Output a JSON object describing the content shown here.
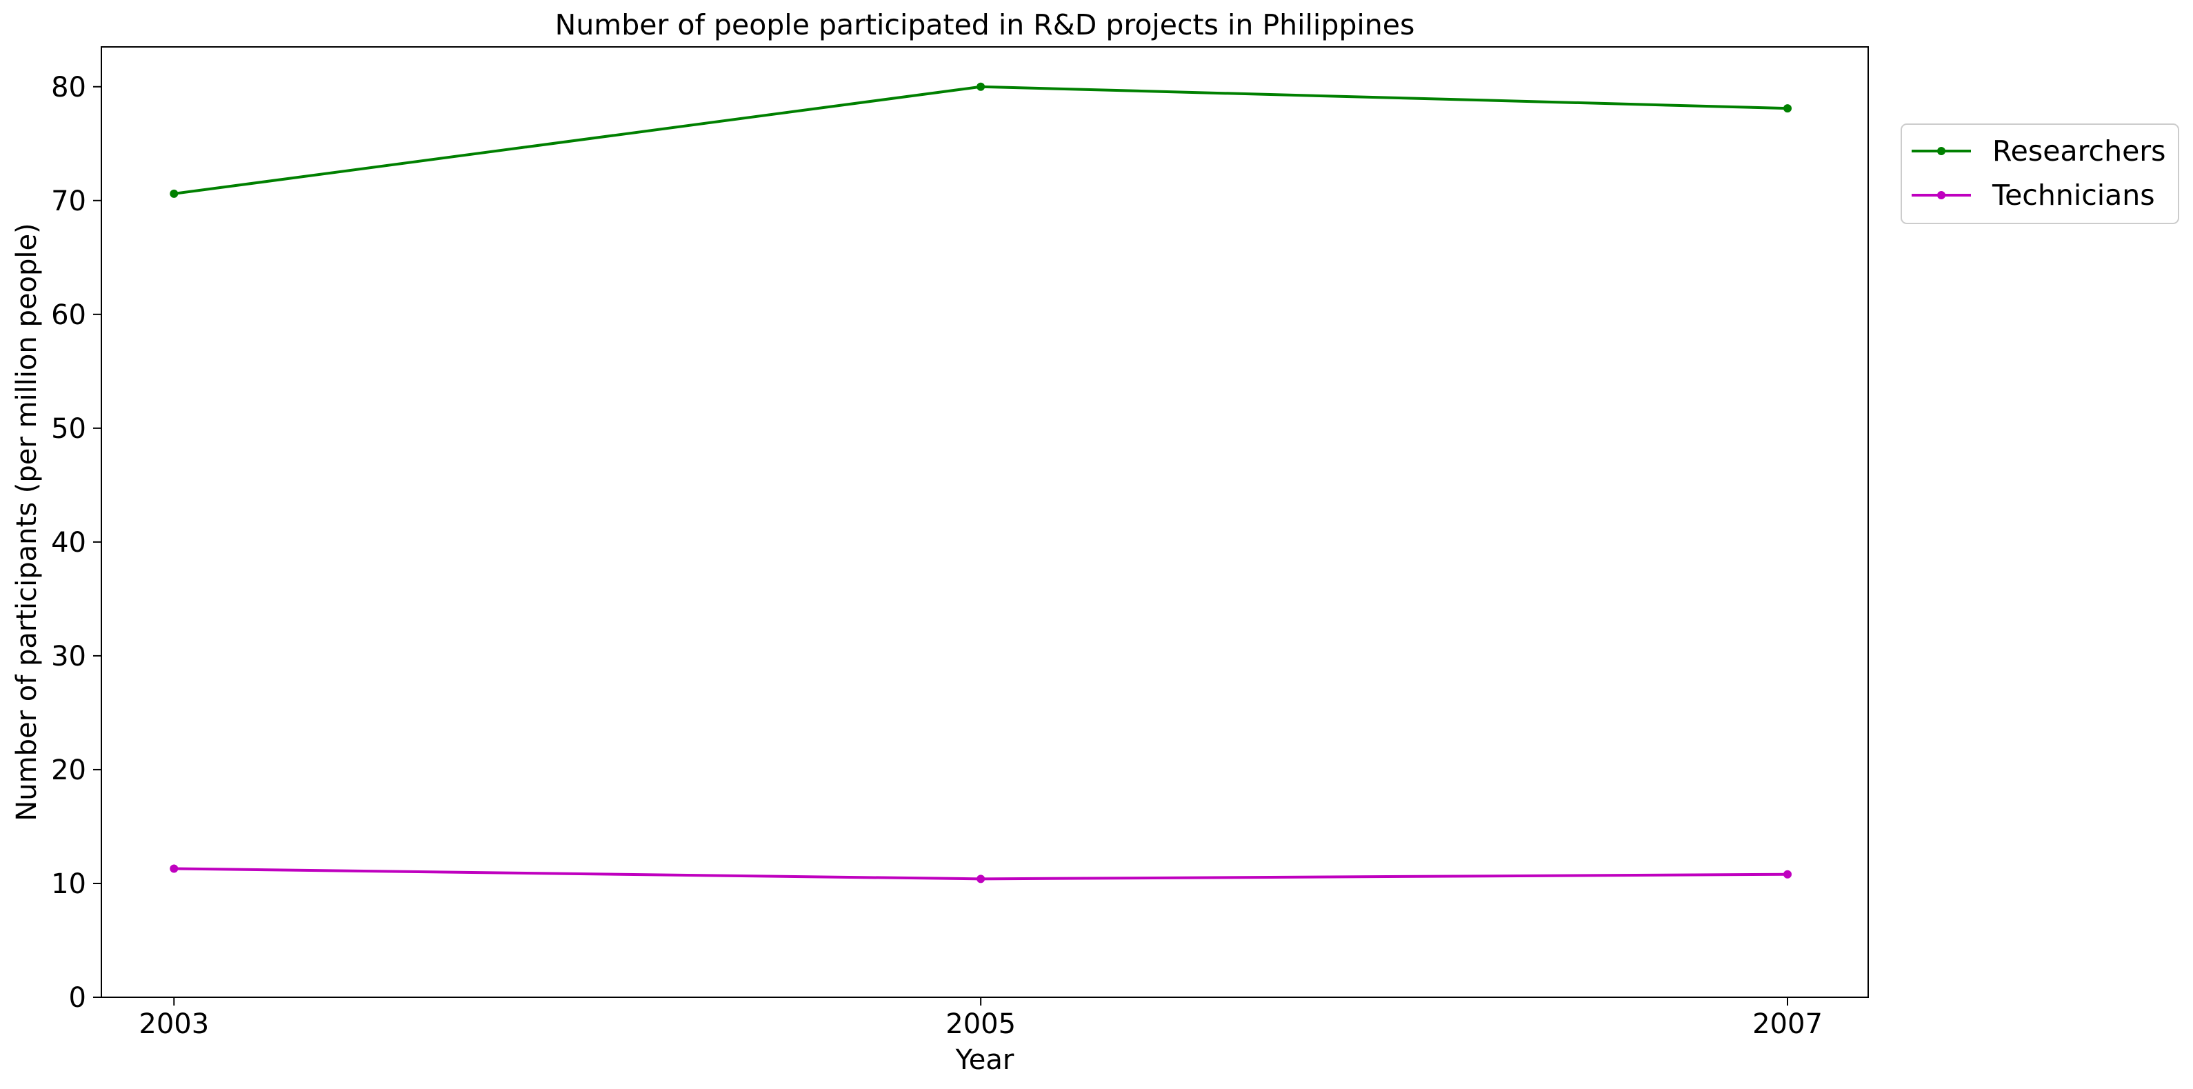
{
  "chart_data": {
    "type": "line",
    "title": "Number of people participated in R&D projects in Philippines",
    "xlabel": "Year",
    "ylabel": "Number of participants (per million people)",
    "x": [
      2003,
      2005,
      2007
    ],
    "x_ticks": [
      "2003",
      "2005",
      "2007"
    ],
    "xlim": [
      2002.82,
      2007.2
    ],
    "ylim": [
      0,
      83.5
    ],
    "y_ticks": [
      0,
      10,
      20,
      30,
      40,
      50,
      60,
      70,
      80
    ],
    "y_tick_labels": [
      "0",
      "10",
      "20",
      "30",
      "40",
      "50",
      "60",
      "70",
      "80"
    ],
    "grid": false,
    "legend_position": "outside-top-right",
    "series": [
      {
        "name": "Researchers",
        "color": "#008000",
        "values": [
          70.6,
          80.0,
          78.1
        ]
      },
      {
        "name": "Technicians",
        "color": "#bf00bf",
        "values": [
          11.3,
          10.4,
          10.8
        ]
      }
    ]
  }
}
